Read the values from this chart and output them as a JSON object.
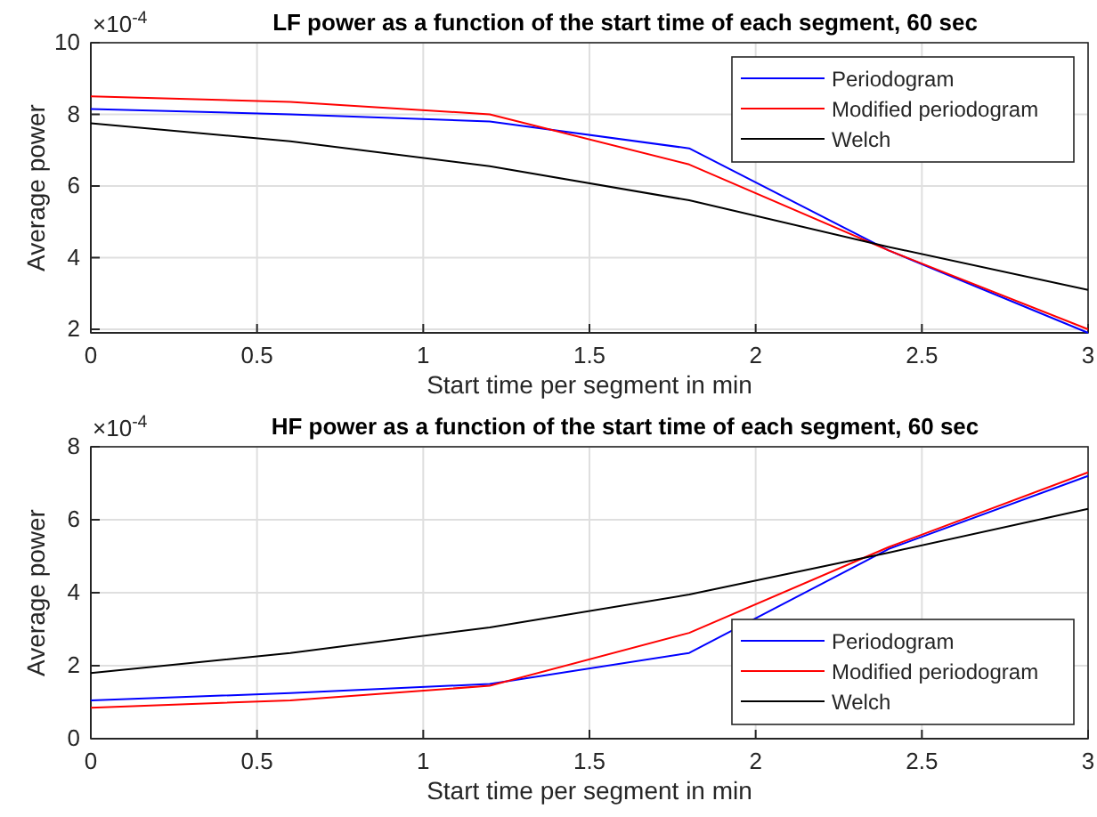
{
  "chart_data": [
    {
      "type": "line",
      "title": "LF power as a function of the start time of each segment, 60 sec",
      "xlabel": "Start time per segment in min",
      "ylabel": "Average power",
      "annotations": [
        "×10$^{-4}$"
      ],
      "x": [
        0,
        0.6,
        1.2,
        1.8,
        2.4,
        3.0
      ],
      "series": [
        {
          "name": "Periodogram",
          "color": "#0000ff",
          "values": [
            8.15,
            8.0,
            7.8,
            7.05,
            4.2,
            1.9
          ]
        },
        {
          "name": "Modified periodogram",
          "color": "#ff0000",
          "values": [
            8.5,
            8.35,
            8.0,
            6.6,
            4.2,
            2.0
          ]
        },
        {
          "name": "Welch",
          "color": "#000000",
          "values": [
            7.75,
            7.25,
            6.55,
            5.6,
            4.3,
            3.1
          ]
        }
      ],
      "xlim": [
        0,
        3
      ],
      "xticks": [
        0,
        0.5,
        1,
        1.5,
        2,
        2.5,
        3
      ],
      "ylim": [
        1.9,
        10
      ],
      "yticks": [
        2,
        4,
        6,
        8,
        10
      ],
      "grid": true,
      "legend": "top right",
      "line_style": "solid"
    },
    {
      "type": "line",
      "title": "HF power as a function of the start time of each segment, 60 sec",
      "xlabel": "Start time per segment in min",
      "ylabel": "Average power",
      "annotations": [
        "×10$^{-4}$"
      ],
      "x": [
        0,
        0.6,
        1.2,
        1.8,
        2.4,
        3.0
      ],
      "series": [
        {
          "name": "Periodogram",
          "color": "#0000ff",
          "values": [
            1.05,
            1.25,
            1.5,
            2.35,
            5.2,
            7.2
          ]
        },
        {
          "name": "Modified periodogram",
          "color": "#ff0000",
          "values": [
            0.85,
            1.05,
            1.45,
            2.9,
            5.25,
            7.3
          ]
        },
        {
          "name": "Welch",
          "color": "#000000",
          "values": [
            1.8,
            2.35,
            3.05,
            3.95,
            5.1,
            6.3
          ]
        }
      ],
      "xlim": [
        0,
        3
      ],
      "xticks": [
        0,
        0.5,
        1,
        1.5,
        2,
        2.5,
        3
      ],
      "ylim": [
        0,
        8
      ],
      "yticks": [
        0,
        2,
        4,
        6,
        8
      ],
      "grid": true,
      "legend": "bottom right",
      "line_style": "solid"
    }
  ]
}
